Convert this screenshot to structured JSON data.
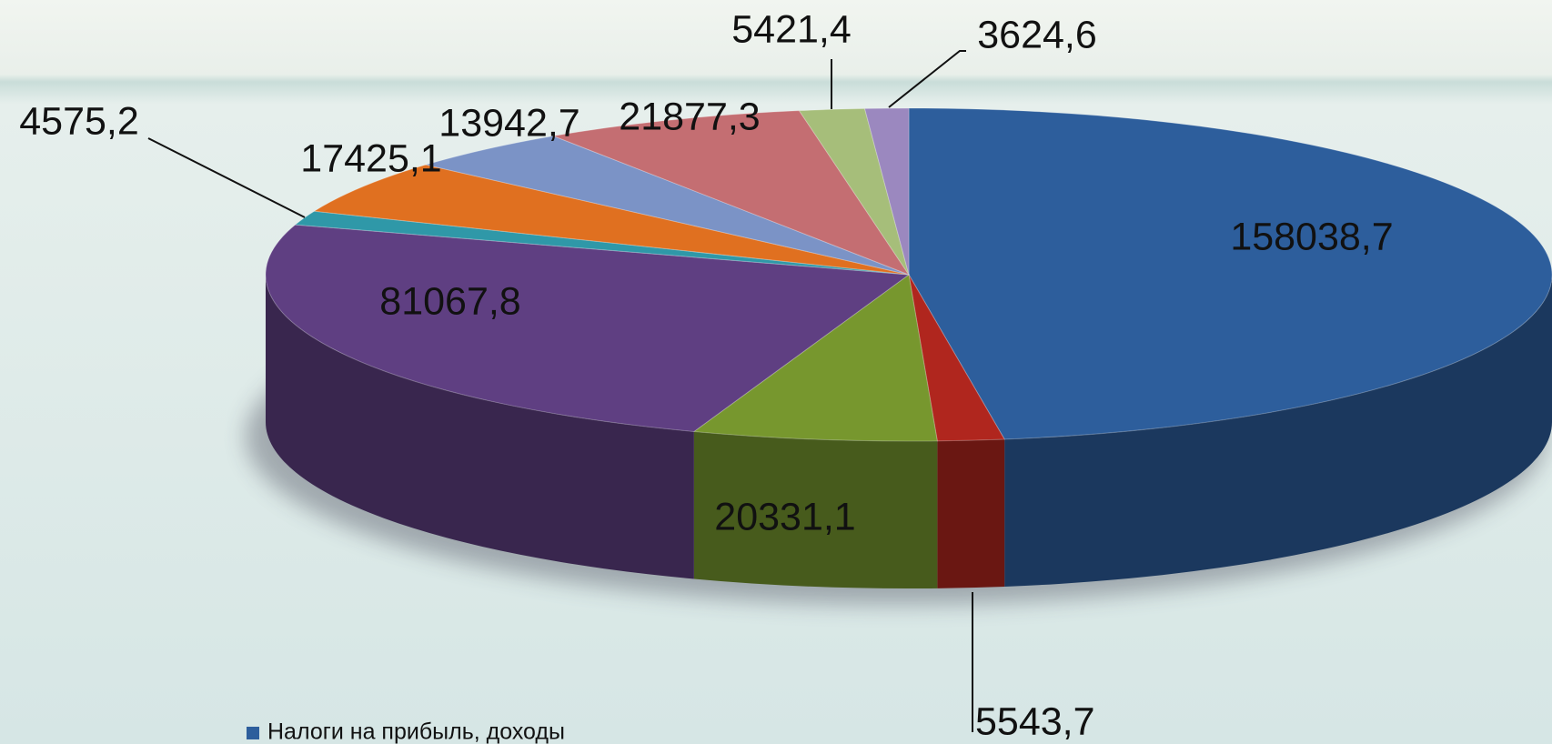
{
  "chart_data": {
    "type": "pie3d",
    "categories": [
      "Налоги на прибыль, доходы",
      null,
      null,
      null,
      null,
      null,
      null,
      null,
      null,
      null
    ],
    "values": [
      158038.7,
      5543.7,
      20331.1,
      81067.8,
      4575.2,
      17425.1,
      13942.7,
      21877.3,
      5421.4,
      3624.6
    ],
    "value_labels": [
      "158038,7",
      "5543,7",
      "20331,1",
      "81067,8",
      "4575,2",
      "17425,1",
      "13942,7",
      "21877,3",
      "5421,4",
      "3624,6"
    ],
    "colors": [
      "#2d5e9c",
      "#b0261e",
      "#77972e",
      "#5f3f82",
      "#2f98a8",
      "#e07020",
      "#7b93c6",
      "#c46e72",
      "#a6be7a",
      "#9b88bf"
    ]
  }
}
